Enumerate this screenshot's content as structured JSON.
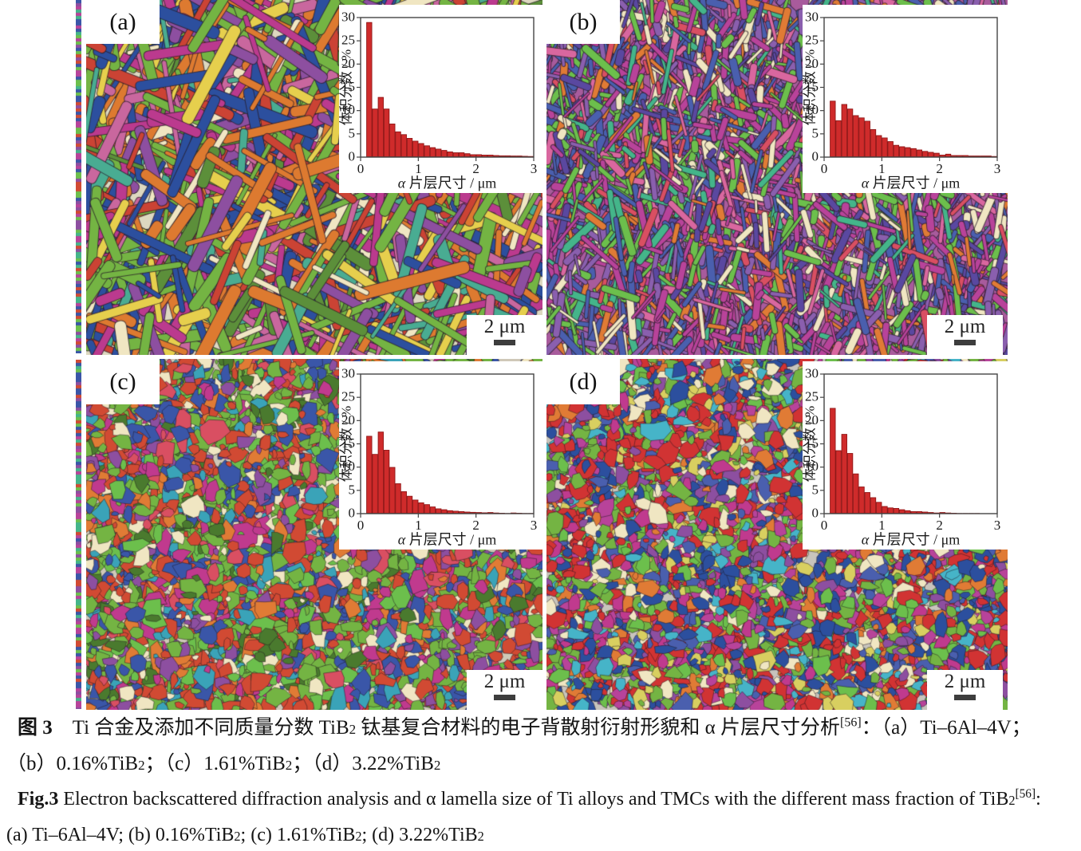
{
  "figure": {
    "panels": [
      {
        "id": "a",
        "label": "(a)",
        "scale_label": "2 μm",
        "micro": {
          "type": "laths",
          "seed": 101,
          "count": 1250,
          "len": [
            28,
            150
          ],
          "wid": [
            5,
            16
          ],
          "angles": [
            -62,
            -62,
            28,
            28,
            75,
            -15,
            100
          ],
          "bg": "#ddd8c0",
          "palette": [
            "#dd7a30",
            "#dd7a30",
            "#2c4f9e",
            "#2c4f9e",
            "#74b443",
            "#74b443",
            "#74b443",
            "#8d4fa0",
            "#bb3a8e",
            "#bb3a8e",
            "#49ac92",
            "#e6cf4d",
            "#cb4334",
            "#f0e6c2",
            "#5c8f3a",
            "#c9679e"
          ]
        }
      },
      {
        "id": "b",
        "label": "(b)",
        "scale_label": "2 μm",
        "micro": {
          "type": "laths",
          "seed": 202,
          "count": 3000,
          "len": [
            12,
            62
          ],
          "wid": [
            3,
            10
          ],
          "angles": [
            80,
            80,
            -50,
            15,
            110,
            -80,
            40
          ],
          "bg": "#a85b9c",
          "palette": [
            "#b8439a",
            "#b8439a",
            "#b8439a",
            "#8a5fae",
            "#8a5fae",
            "#d9679f",
            "#6cbf4c",
            "#6cbf4c",
            "#44b58a",
            "#4a5fae",
            "#4a5fae",
            "#e07b35",
            "#d94f62",
            "#5a48a0",
            "#f0e6c2"
          ]
        }
      },
      {
        "id": "c",
        "label": "(c)",
        "scale_label": "2 μm",
        "micro": {
          "type": "grains",
          "seed": 303,
          "count": 5200,
          "rad": [
            3,
            12
          ],
          "bg": "#cfc8b8",
          "palette": [
            "#d14a33",
            "#d14a33",
            "#d14a33",
            "#74b443",
            "#74b443",
            "#74b443",
            "#3a56a8",
            "#3a56a8",
            "#8d4fa0",
            "#e07b35",
            "#3aa3b8",
            "#c03a8e",
            "#f0e6c2",
            "#4a7a2e",
            "#d94f62",
            "#6cbf4c"
          ]
        }
      },
      {
        "id": "d",
        "label": "(d)",
        "scale_label": "2 μm",
        "micro": {
          "type": "grains",
          "seed": 404,
          "count": 5600,
          "rad": [
            3,
            11
          ],
          "bg": "#c8c4bc",
          "palette": [
            "#d13333",
            "#d13333",
            "#d13333",
            "#2c4f9e",
            "#2c4f9e",
            "#74b443",
            "#74b443",
            "#8d4fa0",
            "#e07b35",
            "#46b4c8",
            "#c03a8e",
            "#f0e6c2",
            "#d8cf60",
            "#6cbf4c",
            "#4a5fae",
            "#b8439a"
          ]
        }
      }
    ],
    "edge_strip": {
      "seed": 77,
      "palette": [
        "#b8439a",
        "#6cbf4c",
        "#3a56a8",
        "#d14a33",
        "#8d4fa0",
        "#44b58a"
      ]
    }
  },
  "chart_data": [
    {
      "type": "bar",
      "panel": "a",
      "title": "",
      "xlabel": "α 片层尺寸 / μm",
      "ylabel": "体积分数 / %",
      "xlim": [
        0,
        3
      ],
      "ylim": [
        0,
        30
      ],
      "xticks": [
        0,
        1,
        2,
        3
      ],
      "yticks": [
        0,
        5,
        10,
        15,
        20,
        25,
        30
      ],
      "grid": false,
      "legend": "none",
      "bar_color": "#cf2b2b",
      "bar_edge": "#8a1818",
      "bin_start": 0.1,
      "bin_width": 0.1,
      "values": [
        29,
        10.4,
        12.9,
        10.4,
        7.2,
        5.5,
        4.9,
        4.1,
        3.5,
        3.0,
        2.5,
        2.1,
        1.8,
        1.5,
        1.2,
        1.0,
        1.0,
        0.8,
        0.6,
        0.6,
        0.5,
        0.5,
        0.4,
        0.35,
        0.35,
        0.3,
        0.3,
        0.25,
        0.2
      ]
    },
    {
      "type": "bar",
      "panel": "b",
      "title": "",
      "xlabel": "α 片层尺寸 / μm",
      "ylabel": "体积分数 / %",
      "xlim": [
        0,
        3
      ],
      "ylim": [
        0,
        30
      ],
      "xticks": [
        0,
        1,
        2,
        3
      ],
      "yticks": [
        0,
        5,
        10,
        15,
        20,
        25,
        30
      ],
      "grid": false,
      "legend": "none",
      "bar_color": "#cf2b2b",
      "bar_edge": "#8a1818",
      "bin_start": 0.1,
      "bin_width": 0.1,
      "values": [
        12.1,
        7.9,
        11.4,
        10.4,
        9.0,
        8.5,
        7.8,
        6.0,
        4.7,
        4.2,
        3.4,
        2.6,
        2.3,
        2.1,
        1.9,
        1.6,
        1.3,
        1.1,
        0.9,
        0.5,
        0.7,
        0.4,
        0.4,
        0.4,
        0.3,
        0.3,
        0.3,
        0.3,
        0.2
      ]
    },
    {
      "type": "bar",
      "panel": "c",
      "title": "",
      "xlabel": "α 片层尺寸 / μm",
      "ylabel": "体积分数 / %",
      "xlim": [
        0,
        3
      ],
      "ylim": [
        0,
        30
      ],
      "xticks": [
        0,
        1,
        2,
        3
      ],
      "yticks": [
        0,
        5,
        10,
        15,
        20,
        25,
        30
      ],
      "grid": false,
      "legend": "none",
      "bar_color": "#cf2b2b",
      "bar_edge": "#8a1818",
      "bin_start": 0.1,
      "bin_width": 0.1,
      "values": [
        16.7,
        12.8,
        17.6,
        13.7,
        10.0,
        6.5,
        4.8,
        3.8,
        3.0,
        2.4,
        2.0,
        1.5,
        1.1,
        0.9,
        0.7,
        0.6,
        0.5,
        0.4,
        0.35,
        0.3,
        0.25,
        0.3,
        0.2,
        0.15,
        0.1,
        0.2,
        0.15,
        0.1,
        0.1
      ]
    },
    {
      "type": "bar",
      "panel": "d",
      "title": "",
      "xlabel": "α 片层尺寸 / μm",
      "ylabel": "体积分数 / %",
      "xlim": [
        0,
        3
      ],
      "ylim": [
        0,
        30
      ],
      "xticks": [
        0,
        1,
        2,
        3
      ],
      "yticks": [
        0,
        5,
        10,
        15,
        20,
        25,
        30
      ],
      "grid": false,
      "legend": "none",
      "bar_color": "#cf2b2b",
      "bar_edge": "#8a1818",
      "bin_start": 0.1,
      "bin_width": 0.1,
      "values": [
        22.7,
        13.6,
        17.1,
        13.0,
        8.6,
        5.8,
        4.6,
        3.5,
        2.5,
        1.6,
        1.3,
        1.2,
        0.9,
        0.7,
        0.5,
        0.5,
        0.4,
        0.3,
        0.2,
        0.3,
        0.2,
        0.15,
        0.1,
        0.1,
        0.1,
        0.1,
        0.05,
        0.05,
        0.05
      ]
    }
  ],
  "captions": {
    "zh_line1": [
      {
        "t": "图 3",
        "b": true
      },
      {
        "t": "　Ti 合金及添加不同质量分数 TiB"
      },
      {
        "t": "2",
        "sub": true
      },
      {
        "t": " 钛基复合材料的电子背散射衍射形貌和 α 片层尺寸分析"
      },
      {
        "t": "[56]",
        "sup": true
      },
      {
        "t": "：（a）Ti–6Al–4V；"
      }
    ],
    "zh_line2": [
      {
        "t": "（b）0.16%TiB"
      },
      {
        "t": "2",
        "sub": true
      },
      {
        "t": "；（c）1.61%TiB"
      },
      {
        "t": "2",
        "sub": true
      },
      {
        "t": "；（d）3.22%TiB"
      },
      {
        "t": "2",
        "sub": true
      }
    ],
    "en_line1": [
      {
        "t": "Fig.3",
        "b": true
      },
      {
        "t": "   Electron backscattered diffraction analysis and α lamella size of Ti alloys and TMCs with the different mass fraction of TiB"
      },
      {
        "t": "2",
        "sub": true
      },
      {
        "t": "[56]",
        "sup": true
      },
      {
        "t": ":"
      }
    ],
    "en_line2": [
      {
        "t": "(a) Ti–6Al–4V; (b) 0.16%TiB"
      },
      {
        "t": "2",
        "sub": true
      },
      {
        "t": "; (c) 1.61%TiB"
      },
      {
        "t": "2",
        "sub": true
      },
      {
        "t": "; (d) 3.22%TiB"
      },
      {
        "t": "2",
        "sub": true
      }
    ]
  }
}
